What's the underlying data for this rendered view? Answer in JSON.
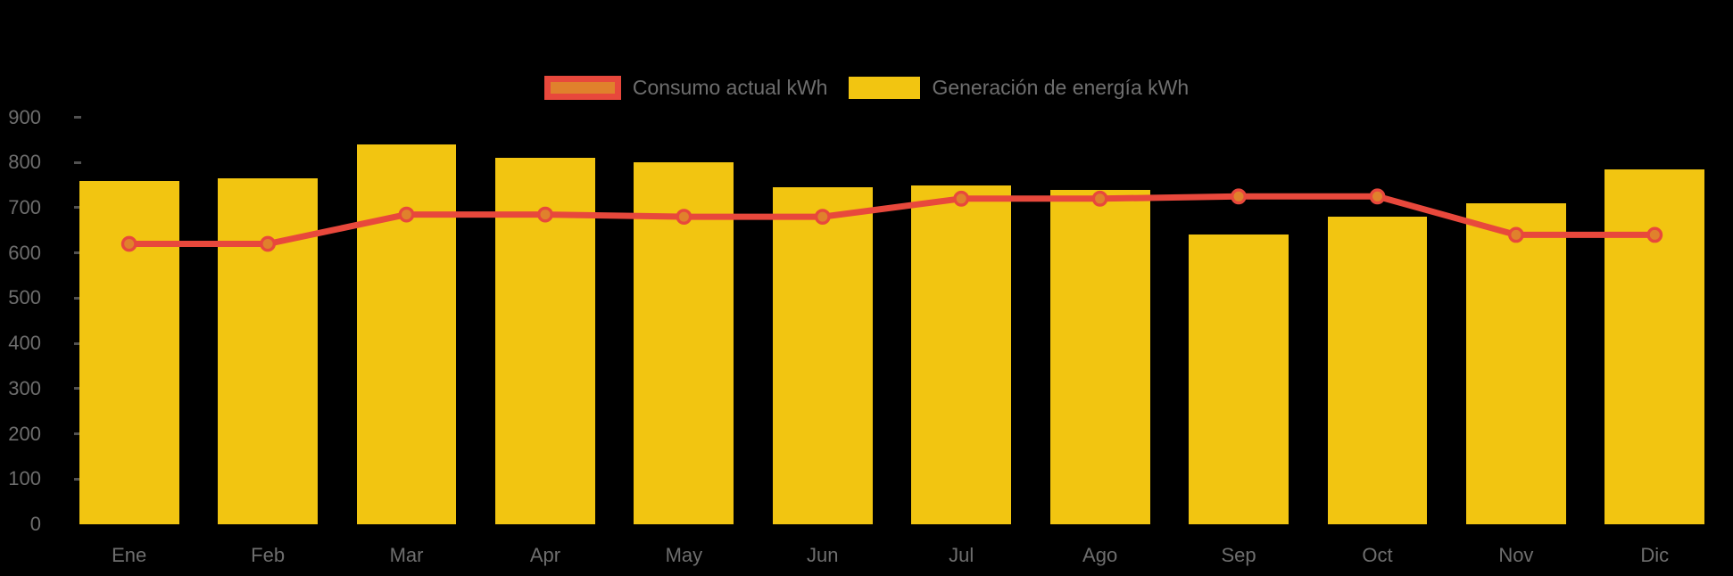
{
  "background_color": "#000000",
  "chart_data": {
    "type": "bar",
    "subtype": "bar-line-combo",
    "title": "",
    "xlabel": "",
    "ylabel": "",
    "categories": [
      "Ene",
      "Feb",
      "Mar",
      "Apr",
      "May",
      "Jun",
      "Jul",
      "Ago",
      "Sep",
      "Oct",
      "Nov",
      "Dic"
    ],
    "series": [
      {
        "name": "Consumo actual kWh",
        "type": "line",
        "line_color": "#E8483C",
        "point_fill_color": "#E0812C",
        "values": [
          620,
          620,
          685,
          685,
          680,
          680,
          720,
          720,
          725,
          725,
          640,
          640
        ]
      },
      {
        "name": "Generación de energía kWh",
        "type": "bar",
        "bar_color": "#F2C511",
        "values": [
          760,
          765,
          840,
          810,
          800,
          745,
          750,
          740,
          640,
          680,
          710,
          785
        ]
      }
    ],
    "ylim": [
      0,
      900
    ],
    "ytick_step": 100,
    "ytick_labels": [
      "0",
      "100",
      "200",
      "300",
      "400",
      "500",
      "600",
      "700",
      "800",
      "900"
    ],
    "grid": false,
    "legend_position": "top-center",
    "axis_text_color": "#6E6E6E"
  }
}
